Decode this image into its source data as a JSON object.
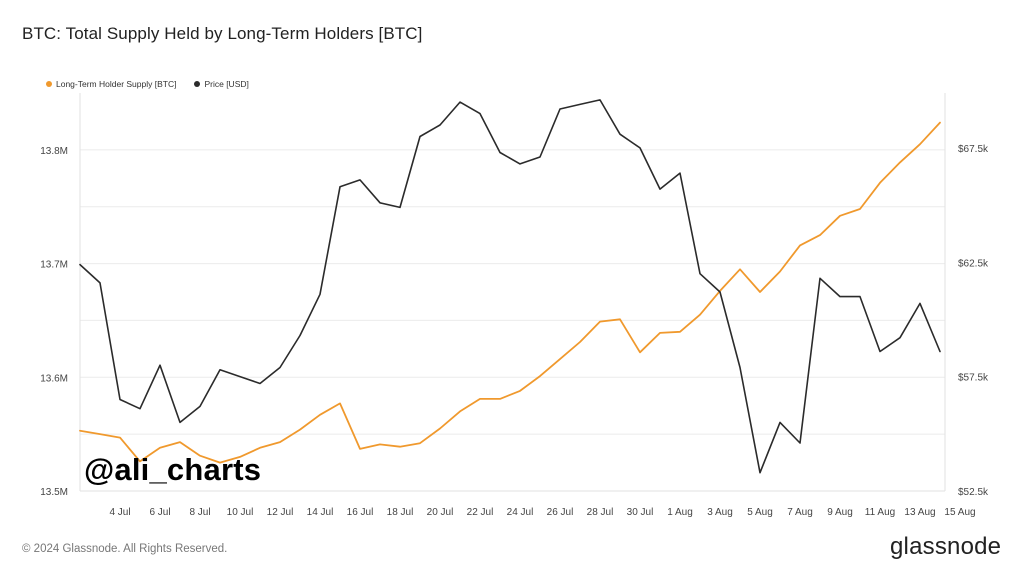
{
  "title": "BTC: Total Supply Held by Long-Term Holders [BTC]",
  "footer": "© 2024 Glassnode. All Rights Reserved.",
  "brand": "glassnode",
  "watermark": "@ali_charts",
  "colors": {
    "supply": "#f0992d",
    "price": "#2b2b2b",
    "grid": "#ebebeb",
    "axis": "#e2e2e2"
  },
  "chart_data": {
    "type": "line",
    "grid": true,
    "legend_position": "top-left",
    "x_tick_labels": [
      "4 Jul",
      "6 Jul",
      "8 Jul",
      "10 Jul",
      "12 Jul",
      "14 Jul",
      "16 Jul",
      "18 Jul",
      "20 Jul",
      "22 Jul",
      "24 Jul",
      "26 Jul",
      "28 Jul",
      "30 Jul",
      "1 Aug",
      "3 Aug",
      "5 Aug",
      "7 Aug",
      "9 Aug",
      "11 Aug",
      "13 Aug",
      "15 Aug"
    ],
    "x": [
      "2 Jul",
      "3 Jul",
      "4 Jul",
      "5 Jul",
      "6 Jul",
      "7 Jul",
      "8 Jul",
      "9 Jul",
      "10 Jul",
      "11 Jul",
      "12 Jul",
      "13 Jul",
      "14 Jul",
      "15 Jul",
      "16 Jul",
      "17 Jul",
      "18 Jul",
      "19 Jul",
      "20 Jul",
      "21 Jul",
      "22 Jul",
      "23 Jul",
      "24 Jul",
      "25 Jul",
      "26 Jul",
      "27 Jul",
      "28 Jul",
      "29 Jul",
      "30 Jul",
      "31 Jul",
      "1 Aug",
      "2 Aug",
      "3 Aug",
      "4 Aug",
      "5 Aug",
      "6 Aug",
      "7 Aug",
      "8 Aug",
      "9 Aug",
      "10 Aug",
      "11 Aug",
      "12 Aug",
      "13 Aug",
      "14 Aug"
    ],
    "y_left": {
      "ticks": [
        13500000,
        13600000,
        13700000,
        13800000
      ],
      "tick_labels": [
        "13.5M",
        "13.6M",
        "13.7M",
        "13.8M"
      ],
      "range": [
        13500000,
        13850000
      ]
    },
    "y_right": {
      "ticks": [
        52500,
        57500,
        62500,
        67500
      ],
      "tick_labels": [
        "$52.5k",
        "$57.5k",
        "$62.5k",
        "$67.5k"
      ],
      "range": [
        52500,
        69900
      ]
    },
    "series": [
      {
        "name": "Long-Term Holder Supply [BTC]",
        "axis": "left",
        "color": "#f0992d",
        "x_start": "2 Jul",
        "values": [
          13553000,
          13550000,
          13547000,
          13526000,
          13538000,
          13543000,
          13531000,
          13525000,
          13530000,
          13538000,
          13543000,
          13554000,
          13567000,
          13577000,
          13537000,
          13541000,
          13539000,
          13542000,
          13555000,
          13570000,
          13581000,
          13581000,
          13588000,
          13601000,
          13616000,
          13631000,
          13649000,
          13651000,
          13622000,
          13639000,
          13640000,
          13655000,
          13676000,
          13695000,
          13675000,
          13693000,
          13716000,
          13725000,
          13742000,
          13748000,
          13771000,
          13789000,
          13805000,
          13824000
        ]
      },
      {
        "name": "Price [USD]",
        "axis": "right",
        "color": "#2b2b2b",
        "x_start": "2 Jul",
        "values": [
          62400,
          61600,
          56500,
          56100,
          58000,
          55500,
          56200,
          57800,
          57500,
          57200,
          57900,
          59300,
          61100,
          65800,
          66100,
          65100,
          64900,
          68000,
          68500,
          69500,
          69000,
          67300,
          66800,
          67100,
          69200,
          69400,
          69600,
          68100,
          67500,
          65700,
          66400,
          62000,
          61200,
          57900,
          53300,
          55500,
          54600,
          61800,
          61000,
          61000,
          58600,
          59200,
          60700,
          58600
        ]
      }
    ]
  }
}
